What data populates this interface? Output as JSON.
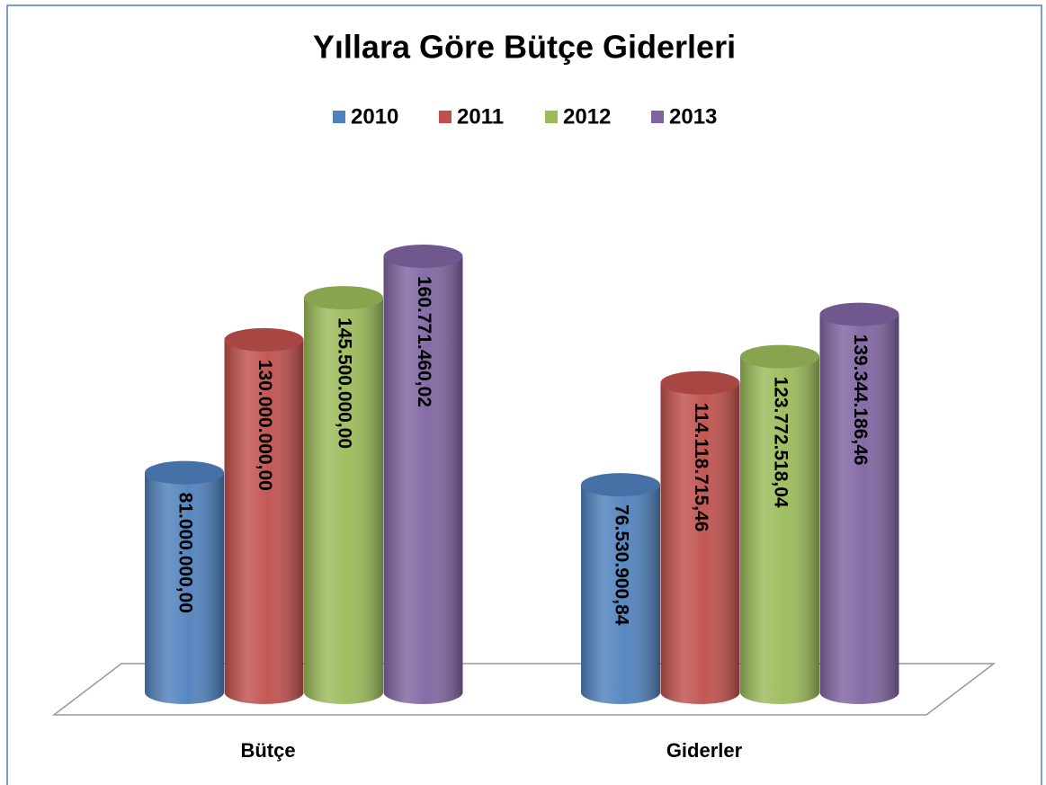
{
  "chart_data": {
    "type": "bar",
    "title": "Yıllara Göre Bütçe Giderleri",
    "categories": [
      "Bütçe",
      "Giderler"
    ],
    "series": [
      {
        "name": "2010",
        "color": "#4f81bd",
        "values": [
          81000000,
          76530900.84
        ],
        "value_labels": [
          "81.000.000,00",
          "76.530.900,84"
        ]
      },
      {
        "name": "2011",
        "color": "#c0504d",
        "values": [
          130000000,
          114118715.46
        ],
        "value_labels": [
          "130.000.000,00",
          "114.118.715,46"
        ]
      },
      {
        "name": "2012",
        "color": "#9bbb59",
        "values": [
          145500000,
          123772518.04
        ],
        "value_labels": [
          "145.500.000,00",
          "123.772.518,04"
        ]
      },
      {
        "name": "2013",
        "color": "#8064a2",
        "values": [
          160771460.02,
          139344186.46
        ],
        "value_labels": [
          "160.771.460,02",
          "139.344.186,46"
        ]
      }
    ]
  }
}
